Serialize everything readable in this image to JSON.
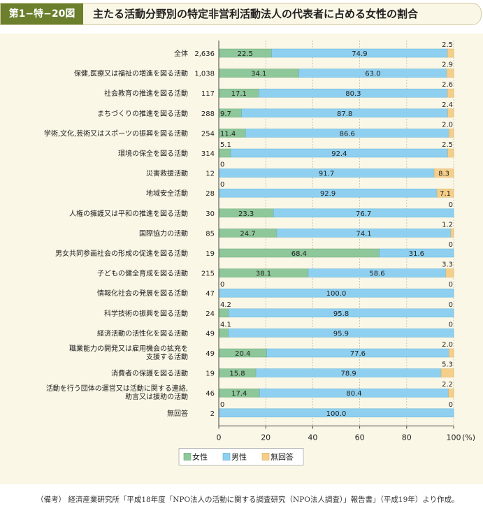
{
  "header": {
    "tag": "第1−特−20図",
    "title": "主たる活動分野別の特定非営利活動法人の代表者に占める女性の割合"
  },
  "note": "（備考） 経済産業研究所「平成18年度「NPO法人の活動に関する調査研究（NPO法人調査）」報告書」（平成19年）より作成。",
  "colors": {
    "female": "#8ec79a",
    "male": "#8fd0f0",
    "no_answer": "#f5cf8a"
  },
  "chart_data": {
    "type": "bar",
    "orientation": "horizontal",
    "stacked": true,
    "unit": "(%)",
    "xlim": [
      0,
      100
    ],
    "xticks": [
      "0",
      "20",
      "40",
      "60",
      "80",
      "100"
    ],
    "grid": "vertical dashed",
    "legend_position": "bottom-center",
    "categories": [
      "全体",
      "保健,医療又は福祉の増進を図る活動",
      "社会教育の推進を図る活動",
      "まちづくりの推進を図る活動",
      "学術,文化,芸術又はスポーツの振興を図る活動",
      "環境の保全を図る活動",
      "災害救援活動",
      "地域安全活動",
      "人権の擁護又は平和の推進を図る活動",
      "国際協力の活動",
      "男女共同参画社会の形成の促進を図る活動",
      "子どもの健全育成を図る活動",
      "情報化社会の発展を図る活動",
      "科学技術の振興を図る活動",
      "経済活動の活性化を図る活動",
      "職業能力の開発又は雇用機会の拡充を|支援する活動",
      "消費者の保護を図る活動",
      "活動を行う団体の運営又は活動に関する連絡,|助言又は援助の活動",
      "無回答"
    ],
    "counts": [
      "2,636",
      "1,038",
      "117",
      "288",
      "254",
      "314",
      "12",
      "28",
      "30",
      "85",
      "19",
      "215",
      "47",
      "24",
      "49",
      "49",
      "19",
      "46",
      "2"
    ],
    "series": [
      {
        "name": "女性",
        "values": [
          22.5,
          34.1,
          17.1,
          9.7,
          11.4,
          5.1,
          0,
          0,
          23.3,
          24.7,
          68.4,
          38.1,
          0,
          4.2,
          4.1,
          20.4,
          15.8,
          17.4,
          0
        ]
      },
      {
        "name": "男性",
        "values": [
          74.9,
          63.0,
          80.3,
          87.8,
          86.6,
          92.4,
          91.7,
          92.9,
          76.7,
          74.1,
          31.6,
          58.6,
          100.0,
          95.8,
          95.9,
          77.6,
          78.9,
          80.4,
          100.0
        ]
      },
      {
        "name": "無回答",
        "values": [
          2.5,
          2.9,
          2.6,
          2.4,
          2.0,
          2.5,
          8.3,
          7.1,
          0,
          1.2,
          0,
          3.3,
          0,
          0,
          0,
          2.0,
          5.3,
          2.2,
          0
        ]
      }
    ],
    "value_labels": {
      "female": [
        "22.5",
        "34.1",
        "17.1",
        "9.7",
        "11.4",
        "5.1",
        "0",
        "0",
        "23.3",
        "24.7",
        "68.4",
        "38.1",
        "0",
        "4.2",
        "4.1",
        "20.4",
        "15.8",
        "17.4",
        "0"
      ],
      "male": [
        "74.9",
        "63.0",
        "80.3",
        "87.8",
        "86.6",
        "92.4",
        "91.7",
        "92.9",
        "76.7",
        "74.1",
        "31.6",
        "58.6",
        "100.0",
        "95.8",
        "95.9",
        "77.6",
        "78.9",
        "80.4",
        "100.0"
      ],
      "no_answer": [
        "2.5",
        "2.9",
        "2.6",
        "2.4",
        "2.0",
        "2.5",
        "8.3",
        "7.1",
        "0",
        "1.2",
        "0",
        "3.3",
        "0",
        "0",
        "0",
        "2.0",
        "5.3",
        "2.2",
        "0"
      ]
    }
  }
}
